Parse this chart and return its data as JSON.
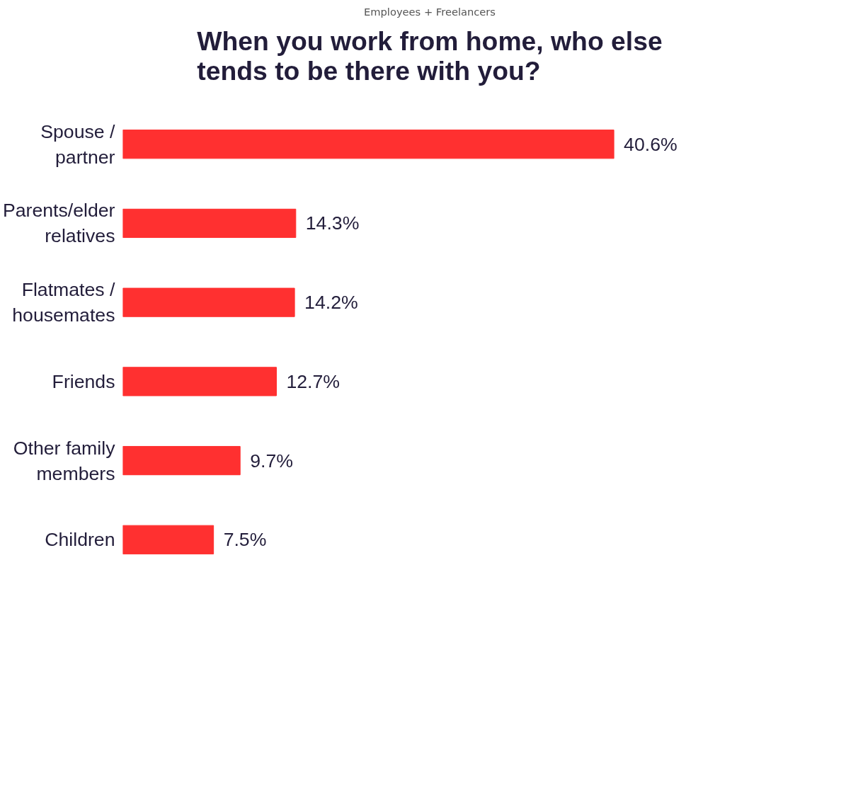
{
  "chart_data": {
    "type": "bar",
    "orientation": "horizontal",
    "subtitle": "Employees + Freelancers",
    "title": "When you work from home, who else tends to be there with you?",
    "categories": [
      "Spouse / partner",
      "Parents/elder relatives",
      "Flatmates / housemates",
      "Friends",
      "Other family members",
      "Children"
    ],
    "values": [
      40.6,
      14.3,
      14.2,
      12.7,
      9.7,
      7.5
    ],
    "value_labels": [
      "40.6%",
      "14.3%",
      "14.2%",
      "12.7%",
      "9.7%",
      "7.5%"
    ],
    "color": "#ff3030",
    "tick_labels": "y",
    "grid": false
  }
}
